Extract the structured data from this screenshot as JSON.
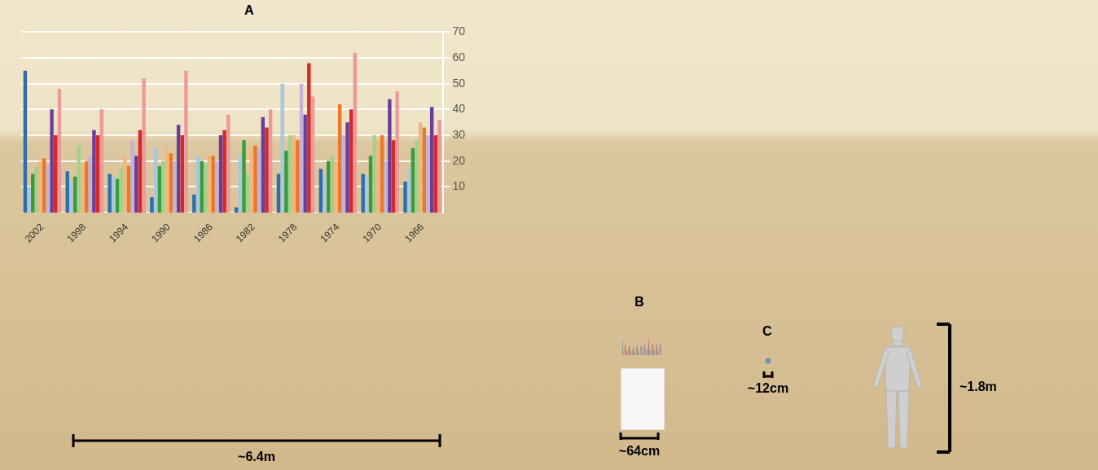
{
  "chart_data": {
    "type": "bar",
    "categories": [
      "2002",
      "1998",
      "1994",
      "1990",
      "1986",
      "1982",
      "1978",
      "1974",
      "1970",
      "1966"
    ],
    "series": [
      {
        "color": "#2f6ea8",
        "values": [
          55,
          16,
          15,
          6,
          7,
          2,
          15,
          17,
          15,
          12
        ]
      },
      {
        "color": "#a9c8dc",
        "values": [
          10,
          12,
          14,
          25,
          22,
          22,
          50,
          15,
          14,
          17
        ]
      },
      {
        "color": "#3a9a3c",
        "values": [
          15,
          14,
          13,
          18,
          20,
          28,
          24,
          20,
          22,
          25
        ]
      },
      {
        "color": "#9fd28a",
        "values": [
          18,
          26,
          17,
          20,
          19,
          15,
          30,
          22,
          30,
          28
        ]
      },
      {
        "color": "#f2b67c",
        "values": [
          20,
          19,
          22,
          24,
          22,
          25,
          30,
          20,
          28,
          35
        ]
      },
      {
        "color": "#e8782a",
        "values": [
          21,
          20,
          18,
          23,
          22,
          26,
          28,
          42,
          30,
          33
        ]
      },
      {
        "color": "#c3b2d6",
        "values": [
          18,
          22,
          28,
          20,
          20,
          25,
          50,
          30,
          20,
          30
        ]
      },
      {
        "color": "#6a3d9a",
        "values": [
          40,
          32,
          22,
          34,
          30,
          37,
          38,
          35,
          44,
          41
        ]
      },
      {
        "color": "#d42a2a",
        "values": [
          30,
          30,
          32,
          30,
          32,
          33,
          58,
          40,
          28,
          30
        ]
      },
      {
        "color": "#eb9a9a",
        "values": [
          48,
          40,
          52,
          55,
          38,
          40,
          45,
          62,
          47,
          36
        ]
      }
    ],
    "ylim": [
      0,
      70
    ],
    "yticks": [
      10,
      20,
      30,
      40,
      50,
      60,
      70
    ],
    "grid": true
  },
  "scene": [
    {
      "label": "A",
      "dimension": "~6.4m"
    },
    {
      "label": "B",
      "dimension": "~64cm"
    },
    {
      "label": "C",
      "dimension": "~12cm"
    },
    {
      "dimension": "~1.8m"
    }
  ]
}
